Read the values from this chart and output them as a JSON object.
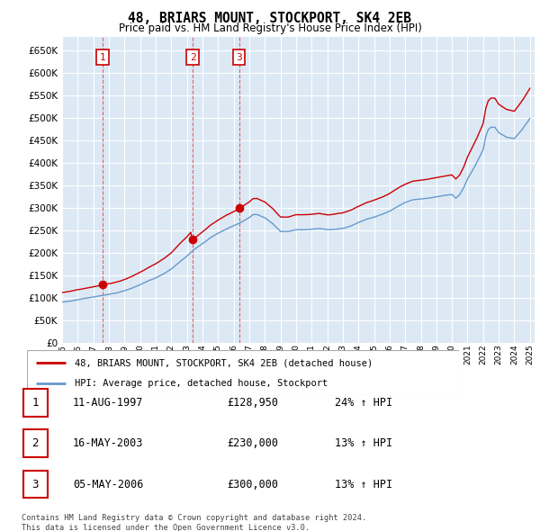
{
  "title": "48, BRIARS MOUNT, STOCKPORT, SK4 2EB",
  "subtitle": "Price paid vs. HM Land Registry's House Price Index (HPI)",
  "ylim": [
    0,
    680000
  ],
  "yticks": [
    0,
    50000,
    100000,
    150000,
    200000,
    250000,
    300000,
    350000,
    400000,
    450000,
    500000,
    550000,
    600000,
    650000
  ],
  "hpi_color": "#6699cc",
  "price_color": "#cc0000",
  "background_color": "#ffffff",
  "plot_bg_color": "#dce9f5",
  "grid_color": "#ffffff",
  "purchases": [
    {
      "label": "1",
      "date_str": "11-AUG-1997",
      "price": 128950,
      "pct": "24% ↑ HPI",
      "x": 1997.6
    },
    {
      "label": "2",
      "date_str": "16-MAY-2003",
      "price": 230000,
      "pct": "13% ↑ HPI",
      "x": 2003.37
    },
    {
      "label": "3",
      "date_str": "05-MAY-2006",
      "price": 300000,
      "pct": "13% ↑ HPI",
      "x": 2006.35
    }
  ],
  "legend_label_price": "48, BRIARS MOUNT, STOCKPORT, SK4 2EB (detached house)",
  "legend_label_hpi": "HPI: Average price, detached house, Stockport",
  "footer": "Contains HM Land Registry data © Crown copyright and database right 2024.\nThis data is licensed under the Open Government Licence v3.0.",
  "table_rows": [
    [
      "1",
      "11-AUG-1997",
      "£128,950",
      "24% ↑ HPI"
    ],
    [
      "2",
      "16-MAY-2003",
      "£230,000",
      "13% ↑ HPI"
    ],
    [
      "3",
      "05-MAY-2006",
      "£300,000",
      "13% ↑ HPI"
    ]
  ],
  "hpi_x": [
    1995.0,
    1995.08,
    1995.17,
    1995.25,
    1995.33,
    1995.42,
    1995.5,
    1995.58,
    1995.67,
    1995.75,
    1995.83,
    1995.92,
    1996.0,
    1996.08,
    1996.17,
    1996.25,
    1996.33,
    1996.42,
    1996.5,
    1996.58,
    1996.67,
    1996.75,
    1996.83,
    1996.92,
    1997.0,
    1997.08,
    1997.17,
    1997.25,
    1997.33,
    1997.42,
    1997.5,
    1997.58,
    1997.67,
    1997.75,
    1997.83,
    1997.92,
    1998.0,
    1998.08,
    1998.17,
    1998.25,
    1998.33,
    1998.42,
    1998.5,
    1998.58,
    1998.67,
    1998.75,
    1998.83,
    1998.92,
    1999.0,
    1999.08,
    1999.17,
    1999.25,
    1999.33,
    1999.42,
    1999.5,
    1999.58,
    1999.67,
    1999.75,
    1999.83,
    1999.92,
    2000.0,
    2000.08,
    2000.17,
    2000.25,
    2000.33,
    2000.42,
    2000.5,
    2000.58,
    2000.67,
    2000.75,
    2000.83,
    2000.92,
    2001.0,
    2001.08,
    2001.17,
    2001.25,
    2001.33,
    2001.42,
    2001.5,
    2001.58,
    2001.67,
    2001.75,
    2001.83,
    2001.92,
    2002.0,
    2002.08,
    2002.17,
    2002.25,
    2002.33,
    2002.42,
    2002.5,
    2002.58,
    2002.67,
    2002.75,
    2002.83,
    2002.92,
    2003.0,
    2003.08,
    2003.17,
    2003.25,
    2003.33,
    2003.42,
    2003.5,
    2003.58,
    2003.67,
    2003.75,
    2003.83,
    2003.92,
    2004.0,
    2004.08,
    2004.17,
    2004.25,
    2004.33,
    2004.42,
    2004.5,
    2004.58,
    2004.67,
    2004.75,
    2004.83,
    2004.92,
    2005.0,
    2005.08,
    2005.17,
    2005.25,
    2005.33,
    2005.42,
    2005.5,
    2005.58,
    2005.67,
    2005.75,
    2005.83,
    2005.92,
    2006.0,
    2006.08,
    2006.17,
    2006.25,
    2006.33,
    2006.42,
    2006.5,
    2006.58,
    2006.67,
    2006.75,
    2006.83,
    2006.92,
    2007.0,
    2007.08,
    2007.17,
    2007.25,
    2007.33,
    2007.42,
    2007.5,
    2007.58,
    2007.67,
    2007.75,
    2007.83,
    2007.92,
    2008.0,
    2008.08,
    2008.17,
    2008.25,
    2008.33,
    2008.42,
    2008.5,
    2008.58,
    2008.67,
    2008.75,
    2008.83,
    2008.92,
    2009.0,
    2009.08,
    2009.17,
    2009.25,
    2009.33,
    2009.42,
    2009.5,
    2009.58,
    2009.67,
    2009.75,
    2009.83,
    2009.92,
    2010.0,
    2010.08,
    2010.17,
    2010.25,
    2010.33,
    2010.42,
    2010.5,
    2010.58,
    2010.67,
    2010.75,
    2010.83,
    2010.92,
    2011.0,
    2011.08,
    2011.17,
    2011.25,
    2011.33,
    2011.42,
    2011.5,
    2011.58,
    2011.67,
    2011.75,
    2011.83,
    2011.92,
    2012.0,
    2012.08,
    2012.17,
    2012.25,
    2012.33,
    2012.42,
    2012.5,
    2012.58,
    2012.67,
    2012.75,
    2012.83,
    2012.92,
    2013.0,
    2013.08,
    2013.17,
    2013.25,
    2013.33,
    2013.42,
    2013.5,
    2013.58,
    2013.67,
    2013.75,
    2013.83,
    2013.92,
    2014.0,
    2014.08,
    2014.17,
    2014.25,
    2014.33,
    2014.42,
    2014.5,
    2014.58,
    2014.67,
    2014.75,
    2014.83,
    2014.92,
    2015.0,
    2015.08,
    2015.17,
    2015.25,
    2015.33,
    2015.42,
    2015.5,
    2015.58,
    2015.67,
    2015.75,
    2015.83,
    2015.92,
    2016.0,
    2016.08,
    2016.17,
    2016.25,
    2016.33,
    2016.42,
    2016.5,
    2016.58,
    2016.67,
    2016.75,
    2016.83,
    2016.92,
    2017.0,
    2017.08,
    2017.17,
    2017.25,
    2017.33,
    2017.42,
    2017.5,
    2017.58,
    2017.67,
    2017.75,
    2017.83,
    2017.92,
    2018.0,
    2018.08,
    2018.17,
    2018.25,
    2018.33,
    2018.42,
    2018.5,
    2018.58,
    2018.67,
    2018.75,
    2018.83,
    2018.92,
    2019.0,
    2019.08,
    2019.17,
    2019.25,
    2019.33,
    2019.42,
    2019.5,
    2019.58,
    2019.67,
    2019.75,
    2019.83,
    2019.92,
    2020.0,
    2020.08,
    2020.17,
    2020.25,
    2020.33,
    2020.42,
    2020.5,
    2020.58,
    2020.67,
    2020.75,
    2020.83,
    2020.92,
    2021.0,
    2021.08,
    2021.17,
    2021.25,
    2021.33,
    2021.42,
    2021.5,
    2021.58,
    2021.67,
    2021.75,
    2021.83,
    2021.92,
    2022.0,
    2022.08,
    2022.17,
    2022.25,
    2022.33,
    2022.42,
    2022.5,
    2022.58,
    2022.67,
    2022.75,
    2022.83,
    2022.92,
    2023.0,
    2023.08,
    2023.17,
    2023.25,
    2023.33,
    2023.42,
    2023.5,
    2023.58,
    2023.67,
    2023.75,
    2023.83,
    2023.92,
    2024.0,
    2024.08,
    2024.17,
    2024.25,
    2024.33,
    2024.42,
    2024.5,
    2024.58,
    2024.67,
    2024.75,
    2024.83,
    2024.92,
    2025.0
  ]
}
